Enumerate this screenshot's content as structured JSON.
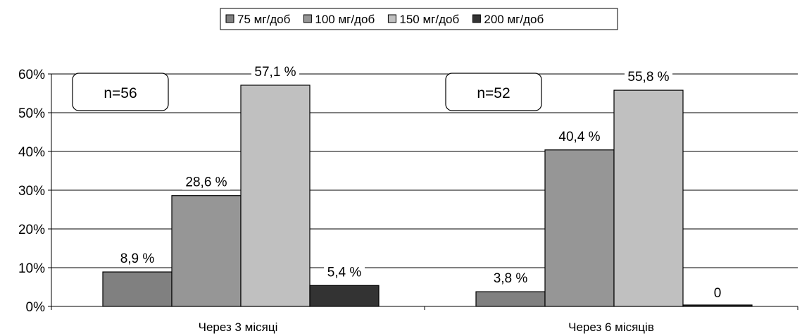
{
  "chart_data": {
    "type": "bar",
    "categories": [
      "Через 3 місяці",
      "Через 6 місяців"
    ],
    "series": [
      {
        "name": "75 мг/доб",
        "values": [
          8.9,
          3.8
        ],
        "labels": [
          "8,9 %",
          "3,8 %"
        ],
        "color": "#808080"
      },
      {
        "name": "100 мг/доб",
        "values": [
          28.6,
          40.4
        ],
        "labels": [
          "28,6 %",
          "40,4 %"
        ],
        "color": "#969696"
      },
      {
        "name": "150 мг/доб",
        "values": [
          57.1,
          55.8
        ],
        "labels": [
          "57,1 %",
          "55,8 %"
        ],
        "color": "#c0c0c0"
      },
      {
        "name": "200 мг/доб",
        "values": [
          5.4,
          0
        ],
        "labels": [
          "5,4 %",
          "0"
        ],
        "color": "#333333"
      }
    ],
    "annotations": [
      "n=56",
      "n=52"
    ],
    "y_ticks": [
      "0%",
      "10%",
      "20%",
      "30%",
      "40%",
      "50%",
      "60%"
    ],
    "ylim": [
      0,
      60
    ],
    "grid": true,
    "legend_position": "top-center",
    "title": "",
    "xlabel": "",
    "ylabel": ""
  }
}
